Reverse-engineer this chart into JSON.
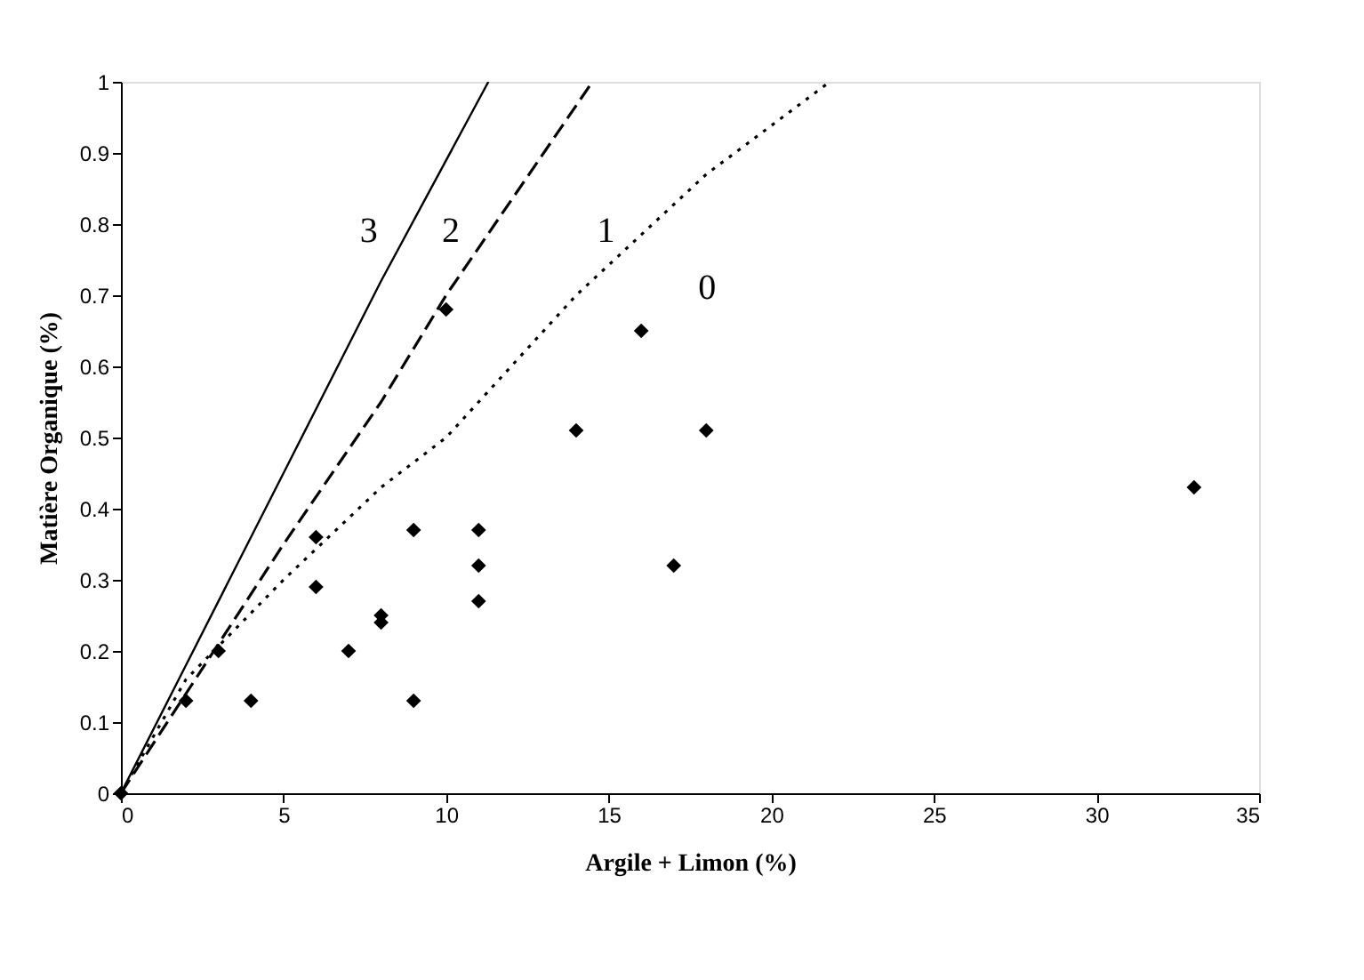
{
  "chart_data": {
    "type": "scatter",
    "xlabel": "Argile + Limon (%)",
    "ylabel": "Matière Organique (%)",
    "xlim": [
      0,
      35
    ],
    "xticks": [
      0,
      5,
      10,
      15,
      20,
      25,
      30,
      35
    ],
    "ylim": [
      0,
      1
    ],
    "yticks": [
      0,
      0.1,
      0.2,
      0.3,
      0.4,
      0.5,
      0.6,
      0.7,
      0.8,
      0.9,
      1
    ],
    "grid": false,
    "marker": "diamond",
    "series": [
      {
        "color": "#000000",
        "x": [
          0,
          2,
          3,
          4,
          6,
          6,
          7,
          8,
          8,
          9,
          9,
          10,
          11,
          11,
          11,
          14,
          16,
          17,
          18,
          33
        ],
        "values": [
          0,
          0.13,
          0.2,
          0.13,
          0.36,
          0.29,
          0.2,
          0.25,
          0.24,
          0.37,
          0.13,
          0.68,
          0.37,
          0.32,
          0.27,
          0.51,
          0.65,
          0.32,
          0.51,
          0.43
        ]
      },
      {
        "type": "line",
        "name": "3",
        "marker": "none",
        "line_style": "solid",
        "color": "#000000",
        "x": [
          0,
          2,
          5,
          8,
          11.3
        ],
        "values": [
          0,
          0.18,
          0.45,
          0.72,
          1.0
        ]
      },
      {
        "type": "line",
        "name": "2",
        "marker": "none",
        "line_style": "dashed",
        "color": "#000000",
        "x": [
          0,
          2,
          5,
          8,
          10,
          14.5
        ],
        "values": [
          0,
          0.14,
          0.35,
          0.55,
          0.7,
          1.0
        ]
      },
      {
        "type": "line",
        "name": "1",
        "marker": "none",
        "line_style": "dotted",
        "color": "#000000",
        "x": [
          0,
          2,
          5,
          8,
          10,
          14,
          18,
          21.8
        ],
        "values": [
          0,
          0.16,
          0.3,
          0.43,
          0.5,
          0.7,
          0.87,
          1.0
        ]
      }
    ],
    "annotations": [
      "0"
    ]
  }
}
